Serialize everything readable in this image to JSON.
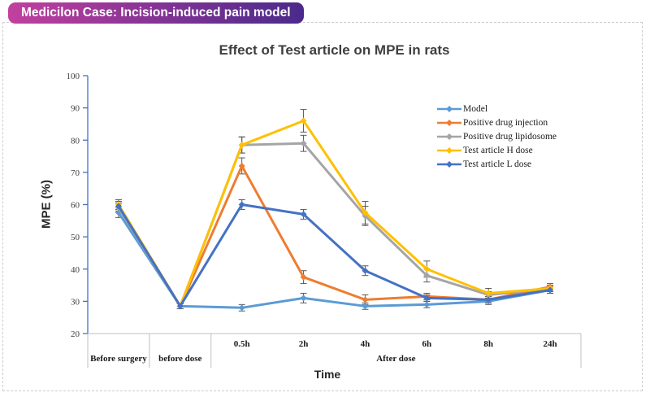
{
  "banner": {
    "text": "Medicilon Case: Incision-induced pain model",
    "gradient_from": "#c2409e",
    "gradient_to": "#4a2a8b"
  },
  "chart_data": {
    "type": "line",
    "title": "Effect of Test article on MPE in rats",
    "xlabel": "Time",
    "ylabel": "MPE (%)",
    "ylim": [
      20,
      100
    ],
    "ytick_step": 10,
    "grid": false,
    "legend_position": "inside-right",
    "marker": "diamond",
    "y_axis_color": "#4472c4",
    "x_axis_color": "#bfbfbf",
    "error_bar_color": "#595959",
    "categories": [
      "",
      "",
      "0.5h",
      "2h",
      "4h",
      "6h",
      "8h",
      "24h"
    ],
    "group_labels": [
      {
        "label": "Before surgery",
        "span": [
          0,
          1
        ]
      },
      {
        "label": "before dose",
        "span": [
          1,
          2
        ]
      },
      {
        "label": "After dose",
        "span": [
          2,
          8
        ]
      }
    ],
    "series": [
      {
        "name": "Model",
        "color": "#5b9bd5",
        "values": [
          57.5,
          28.5,
          28,
          31,
          28.5,
          29,
          30,
          33.5
        ],
        "errors": [
          1.5,
          0.8,
          1,
          1.5,
          1,
          1,
          1,
          1
        ]
      },
      {
        "name": "Positive drug injection",
        "color": "#ed7d31",
        "values": [
          59.5,
          28.5,
          72,
          37.5,
          30.5,
          31.5,
          30.5,
          34.5
        ],
        "errors": [
          1.5,
          0.8,
          2.5,
          2,
          1.5,
          1,
          1,
          1
        ]
      },
      {
        "name": "Positive drug lipidosome",
        "color": "#a5a5a5",
        "values": [
          59,
          28.5,
          78.5,
          79,
          56.5,
          38,
          32,
          34
        ],
        "errors": [
          1.5,
          0.8,
          2.5,
          2.5,
          3,
          2,
          1,
          1
        ]
      },
      {
        "name": "Test article H dose",
        "color": "#ffc000",
        "values": [
          60,
          28.5,
          78.5,
          86,
          57.5,
          40,
          32.5,
          34
        ],
        "errors": [
          1.5,
          0.8,
          2.5,
          3.5,
          3.5,
          2.5,
          1.5,
          1
        ]
      },
      {
        "name": "Test article L dose",
        "color": "#4472c4",
        "values": [
          59.5,
          28.5,
          60,
          57,
          39.5,
          31,
          30.5,
          33.5
        ],
        "errors": [
          1.5,
          0.8,
          1.5,
          1.5,
          1.5,
          1,
          1,
          1
        ]
      }
    ]
  }
}
